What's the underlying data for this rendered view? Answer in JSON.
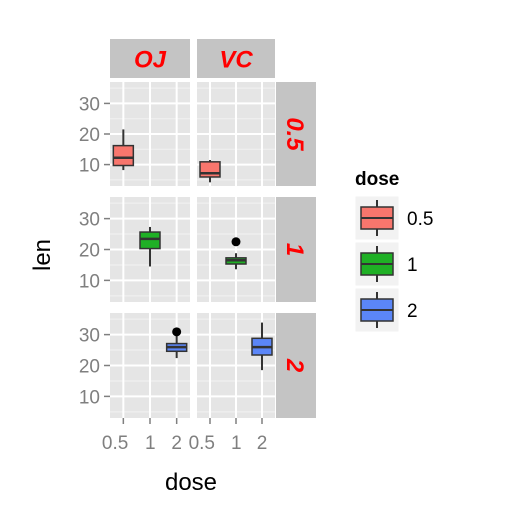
{
  "chart_data": {
    "type": "box",
    "facet_cols": [
      "OJ",
      "VC"
    ],
    "facet_rows": [
      "0.5",
      "1",
      "2"
    ],
    "xlabel": "dose",
    "ylabel": "len",
    "x_categories": [
      "0.5",
      "1",
      "2"
    ],
    "x_tick_labels": [
      "0.5",
      "1",
      "2"
    ],
    "ylim": [
      3,
      37
    ],
    "y_ticks": [
      10,
      20,
      30
    ],
    "legend": {
      "title": "dose",
      "position": "right",
      "entries": [
        {
          "label": "0.5",
          "color": "#f8766d"
        },
        {
          "label": "1",
          "color": "#1fb025"
        },
        {
          "label": "2",
          "color": "#5b86f8"
        }
      ]
    },
    "grid": true,
    "panel_background": "#e5e5e5",
    "strip_background": "#c4c4c4",
    "strip_text_color": "#ff0000",
    "boxes": [
      {
        "panel_row": "0.5",
        "panel_col": "OJ",
        "x": "0.5",
        "lower_whisker": 8.2,
        "q1": 9.7,
        "median": 12.25,
        "q3": 16.2,
        "upper_whisker": 21.5,
        "outliers": [],
        "color": "#f8766d"
      },
      {
        "panel_row": "0.5",
        "panel_col": "VC",
        "x": "0.5",
        "lower_whisker": 4.2,
        "q1": 5.95,
        "median": 7.15,
        "q3": 10.9,
        "upper_whisker": 11.5,
        "outliers": [],
        "color": "#f8766d"
      },
      {
        "panel_row": "1",
        "panel_col": "OJ",
        "x": "1",
        "lower_whisker": 14.5,
        "q1": 20.3,
        "median": 23.45,
        "q3": 25.65,
        "upper_whisker": 27.3,
        "outliers": [],
        "color": "#1fb025"
      },
      {
        "panel_row": "1",
        "panel_col": "VC",
        "x": "1",
        "lower_whisker": 13.6,
        "q1": 15.3,
        "median": 16.5,
        "q3": 17.3,
        "upper_whisker": 18.8,
        "outliers": [
          22.5
        ],
        "color": "#1fb025"
      },
      {
        "panel_row": "2",
        "panel_col": "OJ",
        "x": "2",
        "lower_whisker": 22.4,
        "q1": 24.6,
        "median": 25.95,
        "q3": 27.1,
        "upper_whisker": 30.9,
        "outliers": [
          30.9
        ],
        "color": "#5b86f8"
      },
      {
        "panel_row": "2",
        "panel_col": "VC",
        "x": "2",
        "lower_whisker": 18.5,
        "q1": 23.4,
        "median": 25.95,
        "q3": 28.8,
        "upper_whisker": 33.9,
        "outliers": [],
        "color": "#5b86f8"
      }
    ]
  }
}
